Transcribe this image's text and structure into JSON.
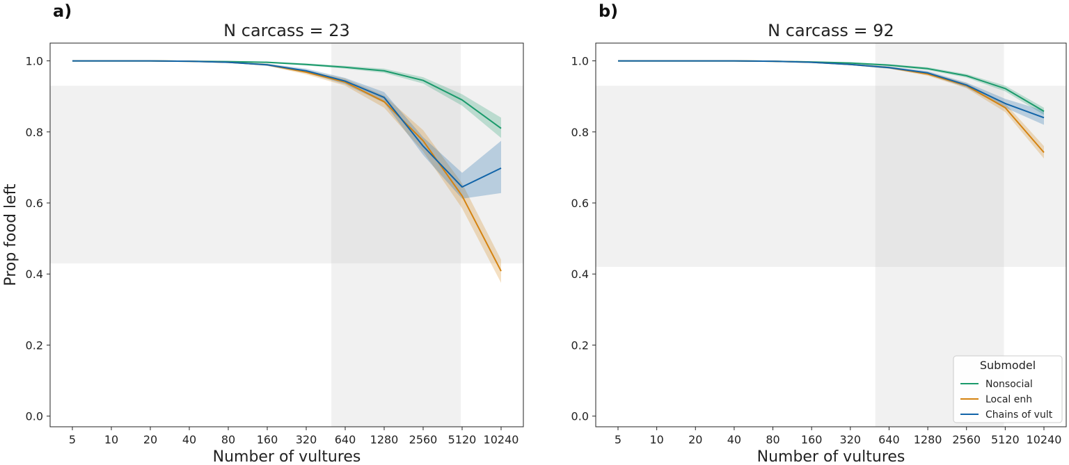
{
  "colors": {
    "nonsocial": "#1a9a6b",
    "local_enh": "#d4820f",
    "chains": "#1164a8",
    "shade": "#c8c8c8"
  },
  "chart_data": [
    {
      "type": "line",
      "panel_label": "a)",
      "title": "N carcass = 23",
      "xlabel": "Number of vultures",
      "ylabel": "Prop food left",
      "x_scale": "log2",
      "x": [
        5,
        10,
        20,
        40,
        80,
        160,
        320,
        640,
        1280,
        2560,
        5120,
        10240
      ],
      "x_tick_labels": [
        "5",
        "10",
        "20",
        "40",
        "80",
        "160",
        "320",
        "640",
        "1280",
        "2560",
        "5120",
        "10240"
      ],
      "y_ticks": [
        0.0,
        0.2,
        0.4,
        0.6,
        0.8,
        1.0
      ],
      "y_tick_labels": [
        "0.0",
        "0.2",
        "0.4",
        "0.6",
        "0.8",
        "1.0"
      ],
      "ylim": [
        -0.03,
        1.05
      ],
      "grid": false,
      "shaded_y_band": [
        0.43,
        0.93
      ],
      "shaded_x_band": [
        500,
        5000
      ],
      "series": [
        {
          "key": "nonsocial",
          "values": [
            1.0,
            1.0,
            1.0,
            0.999,
            0.998,
            0.996,
            0.99,
            0.982,
            0.972,
            0.945,
            0.89,
            0.81
          ],
          "lower": [
            1.0,
            1.0,
            1.0,
            0.999,
            0.997,
            0.994,
            0.987,
            0.978,
            0.966,
            0.936,
            0.874,
            0.783
          ],
          "upper": [
            1.0,
            1.0,
            1.0,
            0.999,
            0.999,
            0.998,
            0.993,
            0.986,
            0.978,
            0.954,
            0.906,
            0.84
          ]
        },
        {
          "key": "local_enh",
          "values": [
            1.0,
            1.0,
            1.0,
            0.999,
            0.996,
            0.989,
            0.968,
            0.94,
            0.885,
            0.775,
            0.62,
            0.408
          ],
          "lower": [
            1.0,
            1.0,
            1.0,
            0.999,
            0.995,
            0.986,
            0.962,
            0.93,
            0.868,
            0.745,
            0.585,
            0.375
          ],
          "upper": [
            1.0,
            1.0,
            1.0,
            0.999,
            0.997,
            0.992,
            0.974,
            0.95,
            0.902,
            0.805,
            0.655,
            0.44
          ]
        },
        {
          "key": "chains",
          "values": [
            1.0,
            1.0,
            1.0,
            0.999,
            0.996,
            0.989,
            0.972,
            0.943,
            0.897,
            0.76,
            0.645,
            0.698
          ],
          "lower": [
            1.0,
            1.0,
            1.0,
            0.999,
            0.995,
            0.986,
            0.966,
            0.934,
            0.882,
            0.735,
            0.612,
            0.628
          ],
          "upper": [
            1.0,
            1.0,
            1.0,
            0.999,
            0.997,
            0.992,
            0.978,
            0.952,
            0.912,
            0.785,
            0.685,
            0.775
          ]
        }
      ]
    },
    {
      "type": "line",
      "panel_label": "b)",
      "title": "N carcass = 92",
      "xlabel": "Number of vultures",
      "ylabel": "",
      "x_scale": "log2",
      "x": [
        5,
        10,
        20,
        40,
        80,
        160,
        320,
        640,
        1280,
        2560,
        5120,
        10240
      ],
      "x_tick_labels": [
        "5",
        "10",
        "20",
        "40",
        "80",
        "160",
        "320",
        "640",
        "1280",
        "2560",
        "5120",
        "10240"
      ],
      "y_ticks": [
        0.0,
        0.2,
        0.4,
        0.6,
        0.8,
        1.0
      ],
      "y_tick_labels": [
        "0.0",
        "0.2",
        "0.4",
        "0.6",
        "0.8",
        "1.0"
      ],
      "ylim": [
        -0.03,
        1.05
      ],
      "grid": false,
      "shaded_y_band": [
        0.42,
        0.93
      ],
      "shaded_x_band": [
        500,
        5000
      ],
      "legend": {
        "title": "Submodel",
        "position": "lower-right",
        "entries": [
          {
            "key": "nonsocial",
            "label": "Nonsocial"
          },
          {
            "key": "local_enh",
            "label": "Local enh"
          },
          {
            "key": "chains",
            "label": "Chains of vult"
          }
        ]
      },
      "series": [
        {
          "key": "nonsocial",
          "values": [
            1.0,
            1.0,
            1.0,
            1.0,
            0.999,
            0.997,
            0.994,
            0.988,
            0.978,
            0.958,
            0.922,
            0.858
          ],
          "lower": [
            1.0,
            1.0,
            1.0,
            1.0,
            0.999,
            0.996,
            0.992,
            0.985,
            0.974,
            0.953,
            0.914,
            0.848
          ],
          "upper": [
            1.0,
            1.0,
            1.0,
            1.0,
            0.999,
            0.998,
            0.996,
            0.991,
            0.982,
            0.963,
            0.93,
            0.868
          ]
        },
        {
          "key": "local_enh",
          "values": [
            1.0,
            1.0,
            1.0,
            1.0,
            0.999,
            0.996,
            0.99,
            0.981,
            0.963,
            0.93,
            0.868,
            0.742
          ],
          "lower": [
            1.0,
            1.0,
            1.0,
            1.0,
            0.999,
            0.995,
            0.988,
            0.978,
            0.958,
            0.923,
            0.856,
            0.725
          ],
          "upper": [
            1.0,
            1.0,
            1.0,
            1.0,
            0.999,
            0.997,
            0.992,
            0.984,
            0.968,
            0.937,
            0.88,
            0.76
          ]
        },
        {
          "key": "chains",
          "values": [
            1.0,
            1.0,
            1.0,
            1.0,
            0.999,
            0.996,
            0.99,
            0.981,
            0.966,
            0.932,
            0.88,
            0.84
          ],
          "lower": [
            1.0,
            1.0,
            1.0,
            1.0,
            0.999,
            0.995,
            0.988,
            0.978,
            0.961,
            0.925,
            0.868,
            0.82
          ],
          "upper": [
            1.0,
            1.0,
            1.0,
            1.0,
            0.999,
            0.997,
            0.992,
            0.984,
            0.971,
            0.939,
            0.893,
            0.86
          ]
        }
      ]
    }
  ]
}
